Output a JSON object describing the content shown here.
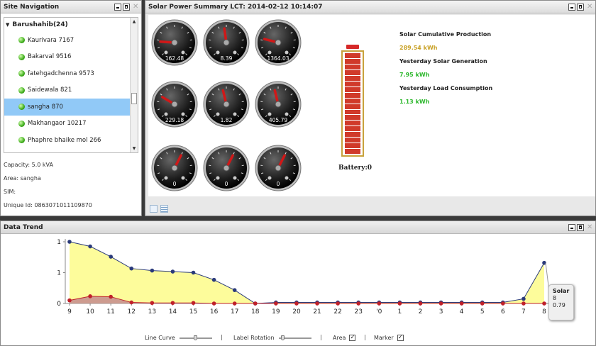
{
  "nav": {
    "title": "Site Navigation",
    "root_label": "Barushahib(24)",
    "items": [
      {
        "label": "Kaurivara 7167"
      },
      {
        "label": "Bakarval 9516"
      },
      {
        "label": "fatehgadchenna 9573"
      },
      {
        "label": "Saidewala 821"
      },
      {
        "label": "sangha 870"
      },
      {
        "label": "Makhangaor 10217"
      },
      {
        "label": "Phaphre bhaike mol 266"
      }
    ],
    "selected_index": 4,
    "info": {
      "capacity": "Capacity:  5.0 kVA",
      "area": "Area:  sangha",
      "sim": "SIM:",
      "unique_id": "Unique Id:  0863071011109870"
    }
  },
  "summary": {
    "title": "Solar Power Summary   LCT: 2014-02-12 10:14:07",
    "gauges": [
      {
        "value": "162.48",
        "fraction": 0.18
      },
      {
        "value": "8.39",
        "fraction": 0.47
      },
      {
        "value": "1364.03",
        "fraction": 0.22
      },
      {
        "value": "229.18",
        "fraction": 0.28
      },
      {
        "value": "1.82",
        "fraction": 0.45
      },
      {
        "value": "405.79",
        "fraction": 0.45
      },
      {
        "value": "0",
        "fraction": 0.6
      },
      {
        "value": "0",
        "fraction": 0.6
      },
      {
        "value": "0",
        "fraction": 0.6
      }
    ],
    "battery_label": "Battery:0",
    "battery_level": 1.0,
    "stats": [
      {
        "label": "Solar Cumulative Production",
        "value": "289.54 kWh",
        "color": "#c9a227"
      },
      {
        "label": "Yesterday Solar Generation",
        "value": "7.95 kWh",
        "color": "#2eb82e"
      },
      {
        "label": "Yesterday Load Consumption",
        "value": "1.13 kWh",
        "color": "#2eb82e"
      }
    ]
  },
  "trend": {
    "title": "Data Trend",
    "controls": {
      "line_curve": "Line Curve",
      "label_rotation": "Label Rotation",
      "area": "Area",
      "marker": "Marker"
    },
    "tooltip": {
      "series": "Solar",
      "x": "8",
      "y": "0.79"
    }
  },
  "chart_data": {
    "type": "area",
    "categories": [
      "9",
      "10",
      "11",
      "12",
      "13",
      "14",
      "15",
      "16",
      "17",
      "18",
      "19",
      "20",
      "21",
      "22",
      "23",
      "'0",
      "1",
      "2",
      "3",
      "4",
      "5",
      "6",
      "7",
      "8"
    ],
    "y_tick_labels": [
      "0",
      "1",
      "1"
    ],
    "ylim": [
      0,
      1.2
    ],
    "series": [
      {
        "name": "Solar",
        "color": "#fdfc96",
        "line": "#2a3a7a",
        "values": [
          1.2,
          1.11,
          0.91,
          0.68,
          0.64,
          0.62,
          0.6,
          0.46,
          0.26,
          0.0,
          0.02,
          0.02,
          0.02,
          0.02,
          0.02,
          0.02,
          0.02,
          0.02,
          0.02,
          0.02,
          0.02,
          0.02,
          0.09,
          0.79
        ]
      },
      {
        "color": "#c8908e",
        "line": "#c0202a",
        "values": [
          0.06,
          0.14,
          0.13,
          0.02,
          0.01,
          0.01,
          0.01,
          0.0,
          0.0,
          0.0,
          0.0,
          0.0,
          0.0,
          0.0,
          0.0,
          0.0,
          0.0,
          0.0,
          0.0,
          0.0,
          0.0,
          0.0,
          0.0,
          0.0
        ]
      }
    ]
  }
}
